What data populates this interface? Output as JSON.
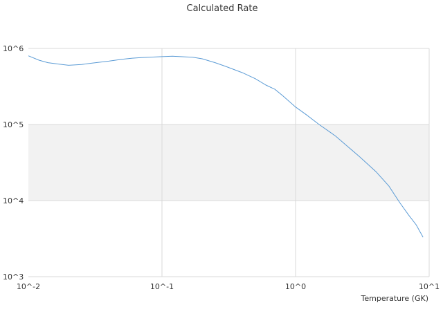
{
  "chart_data": {
    "type": "line",
    "title": "Calculated Rate",
    "xlabel": "Temperature (GK)",
    "ylabel": "",
    "x_scale": "log",
    "y_scale": "log",
    "xlim": [
      0.01,
      10
    ],
    "ylim": [
      1000,
      1000000
    ],
    "x_ticks": [
      {
        "value": 0.01,
        "label": "10^-2"
      },
      {
        "value": 0.1,
        "label": "10^-1"
      },
      {
        "value": 1,
        "label": "10^0"
      },
      {
        "value": 10,
        "label": "10^1"
      }
    ],
    "y_ticks": [
      {
        "value": 1000,
        "label": "10^3"
      },
      {
        "value": 10000,
        "label": "10^4"
      },
      {
        "value": 100000,
        "label": "10^5"
      },
      {
        "value": 1000000,
        "label": "10^6"
      }
    ],
    "grid": true,
    "legend": "none",
    "band": {
      "y_from": 10000,
      "y_to": 100000,
      "color": "#f2f2f2"
    },
    "series": [
      {
        "color": "#5b9bd5",
        "x": [
          0.01,
          0.012,
          0.014,
          0.017,
          0.02,
          0.025,
          0.03,
          0.04,
          0.05,
          0.06,
          0.07,
          0.08,
          0.1,
          0.12,
          0.15,
          0.17,
          0.2,
          0.25,
          0.3,
          0.4,
          0.5,
          0.6,
          0.7,
          0.8,
          1.0,
          1.2,
          1.5,
          1.8,
          2.0,
          2.5,
          3.0,
          4.0,
          5.0,
          6.0,
          7.0,
          8.0,
          9.0
        ],
        "y": [
          800000,
          700000,
          650000,
          620000,
          600000,
          615000,
          640000,
          680000,
          720000,
          745000,
          758000,
          765000,
          780000,
          790000,
          775000,
          765000,
          730000,
          650000,
          580000,
          480000,
          400000,
          330000,
          290000,
          240000,
          170000,
          135000,
          100000,
          80000,
          70000,
          50000,
          38000,
          24000,
          15500,
          9500,
          6500,
          4800,
          3300
        ]
      }
    ]
  }
}
